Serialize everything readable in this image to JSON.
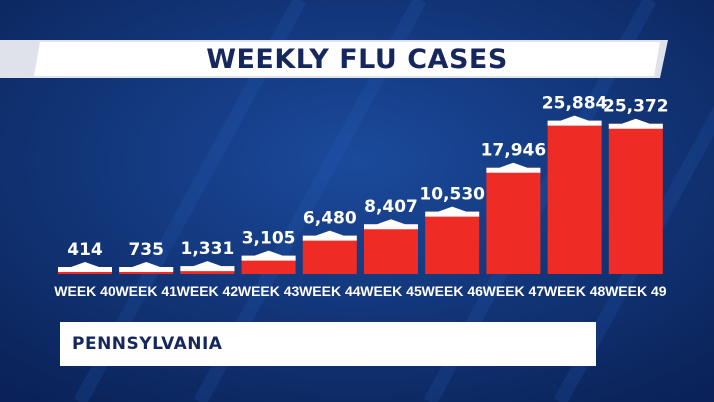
{
  "theme": {
    "background": "#0d2f6e",
    "bar_color": "#ee2b24",
    "bar_cap_color": "#ffffff",
    "title_color": "#15275c"
  },
  "chart_data": {
    "type": "bar",
    "title": "WEEKLY FLU CASES",
    "categories": [
      "WEEK 40",
      "WEEK 41",
      "WEEK 42",
      "WEEK 43",
      "WEEK 44",
      "WEEK 45",
      "WEEK 46",
      "WEEK 47",
      "WEEK 48",
      "WEEK 49"
    ],
    "values": [
      414,
      735,
      1331,
      3105,
      6480,
      8407,
      10530,
      17946,
      25884,
      25372
    ],
    "data_labels": [
      "414",
      "735",
      "1,331",
      "3,105",
      "6,480",
      "8,407",
      "10,530",
      "17,946",
      "25,884",
      "25,372"
    ],
    "ylim": [
      0,
      26000
    ],
    "grid": false
  },
  "footer": {
    "region": "PENNSYLVANIA"
  }
}
